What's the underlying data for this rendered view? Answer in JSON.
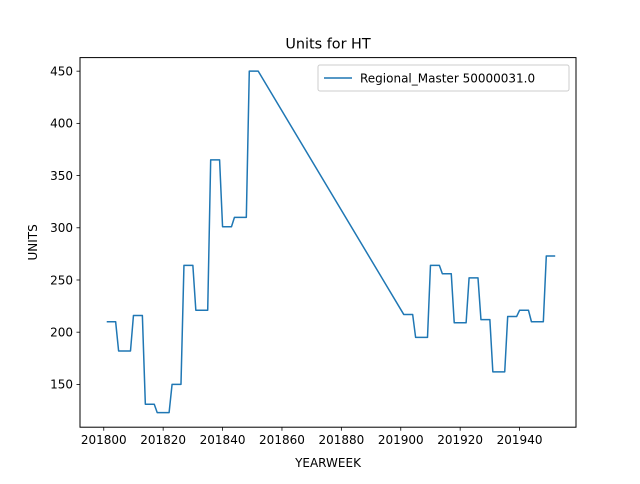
{
  "chart_data": {
    "type": "line",
    "title": "Units for HT",
    "xlabel": "YEARWEEK",
    "ylabel": "UNITS",
    "xlim": [
      201792,
      201959
    ],
    "ylim": [
      109,
      463
    ],
    "xticks": [
      201800,
      201820,
      201840,
      201860,
      201880,
      201900,
      201920,
      201940
    ],
    "yticks": [
      150,
      200,
      250,
      300,
      350,
      400,
      450
    ],
    "grid": false,
    "legend": "top-right",
    "series": [
      {
        "name": "Regional_Master 50000031.0",
        "color": "#1f77b4",
        "x": [
          201801,
          201802,
          201803,
          201804,
          201805,
          201806,
          201807,
          201808,
          201809,
          201810,
          201811,
          201812,
          201813,
          201814,
          201815,
          201816,
          201817,
          201818,
          201819,
          201820,
          201821,
          201822,
          201823,
          201824,
          201825,
          201826,
          201827,
          201828,
          201829,
          201830,
          201831,
          201832,
          201833,
          201834,
          201835,
          201836,
          201837,
          201838,
          201839,
          201840,
          201841,
          201842,
          201843,
          201844,
          201845,
          201846,
          201847,
          201848,
          201849,
          201850,
          201851,
          201852,
          201901,
          201902,
          201903,
          201904,
          201905,
          201906,
          201907,
          201908,
          201909,
          201910,
          201911,
          201912,
          201913,
          201914,
          201915,
          201916,
          201917,
          201918,
          201919,
          201920,
          201921,
          201922,
          201923,
          201924,
          201925,
          201926,
          201927,
          201928,
          201929,
          201930,
          201931,
          201932,
          201933,
          201934,
          201935,
          201936,
          201937,
          201938,
          201939,
          201940,
          201941,
          201942,
          201943,
          201944,
          201945,
          201946,
          201947,
          201948,
          201949,
          201950,
          201951,
          201952
        ],
        "y": [
          210,
          210,
          210,
          210,
          182,
          182,
          182,
          182,
          182,
          216,
          216,
          216,
          216,
          131,
          131,
          131,
          131,
          123,
          123,
          123,
          123,
          123,
          150,
          150,
          150,
          150,
          264,
          264,
          264,
          264,
          221,
          221,
          221,
          221,
          221,
          365,
          365,
          365,
          365,
          301,
          301,
          301,
          301,
          310,
          310,
          310,
          310,
          310,
          450,
          450,
          450,
          450,
          217,
          217,
          217,
          217,
          195,
          195,
          195,
          195,
          195,
          264,
          264,
          264,
          264,
          256,
          256,
          256,
          256,
          209,
          209,
          209,
          209,
          209,
          252,
          252,
          252,
          252,
          212,
          212,
          212,
          212,
          162,
          162,
          162,
          162,
          162,
          215,
          215,
          215,
          215,
          221,
          221,
          221,
          221,
          210,
          210,
          210,
          210,
          210,
          273,
          273,
          273,
          273
        ]
      }
    ]
  }
}
